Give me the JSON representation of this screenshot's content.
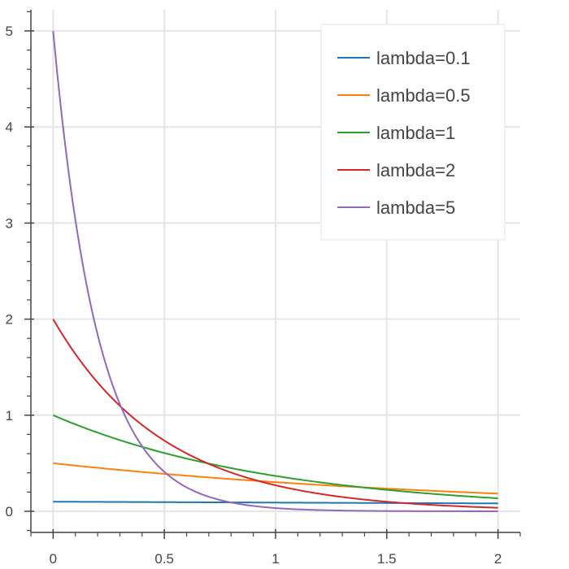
{
  "chart_data": {
    "type": "line",
    "title": "",
    "xlabel": "",
    "ylabel": "",
    "xlim": [
      -0.1,
      2.1
    ],
    "ylim": [
      -0.22,
      5.22
    ],
    "grid": true,
    "legend_position": "top-right",
    "x_ticks": [
      0,
      0.5,
      1,
      1.5,
      2
    ],
    "x_tick_labels": [
      "0",
      "0.5",
      "1",
      "1.5",
      "2"
    ],
    "y_ticks": [
      0,
      1,
      2,
      3,
      4,
      5
    ],
    "y_tick_labels": [
      "0",
      "1",
      "2",
      "3",
      "4",
      "5"
    ],
    "x": [
      0,
      0.1,
      0.2,
      0.3,
      0.4,
      0.5,
      0.6,
      0.7,
      0.8,
      0.9,
      1.0,
      1.1,
      1.2,
      1.3,
      1.4,
      1.5,
      1.6,
      1.7,
      1.8,
      1.9,
      2.0
    ],
    "series": [
      {
        "name": "lambda=0.1",
        "color": "#1f77b4",
        "values": [
          0.1,
          0.099,
          0.098,
          0.097,
          0.096,
          0.095,
          0.094,
          0.093,
          0.092,
          0.091,
          0.09,
          0.09,
          0.089,
          0.088,
          0.087,
          0.086,
          0.085,
          0.084,
          0.084,
          0.083,
          0.082
        ]
      },
      {
        "name": "lambda=0.5",
        "color": "#ff7f0e",
        "values": [
          0.5,
          0.476,
          0.452,
          0.43,
          0.409,
          0.389,
          0.37,
          0.352,
          0.335,
          0.319,
          0.303,
          0.288,
          0.274,
          0.261,
          0.248,
          0.236,
          0.225,
          0.214,
          0.203,
          0.193,
          0.184
        ]
      },
      {
        "name": "lambda=1",
        "color": "#2ca02c",
        "values": [
          1.0,
          0.905,
          0.819,
          0.741,
          0.67,
          0.607,
          0.549,
          0.497,
          0.449,
          0.407,
          0.368,
          0.333,
          0.301,
          0.273,
          0.247,
          0.223,
          0.202,
          0.183,
          0.165,
          0.15,
          0.135
        ]
      },
      {
        "name": "lambda=2",
        "color": "#d62728",
        "values": [
          2.0,
          1.637,
          1.341,
          1.098,
          0.899,
          0.736,
          0.602,
          0.493,
          0.404,
          0.331,
          0.271,
          0.222,
          0.181,
          0.149,
          0.122,
          0.1,
          0.082,
          0.067,
          0.055,
          0.045,
          0.037
        ]
      },
      {
        "name": "lambda=5",
        "color": "#9467bd",
        "values": [
          5.0,
          3.033,
          1.839,
          1.116,
          0.677,
          0.41,
          0.249,
          0.151,
          0.092,
          0.056,
          0.034,
          0.02,
          0.012,
          0.008,
          0.005,
          0.003,
          0.002,
          0.001,
          0.001,
          0.0,
          0.0
        ]
      }
    ]
  }
}
